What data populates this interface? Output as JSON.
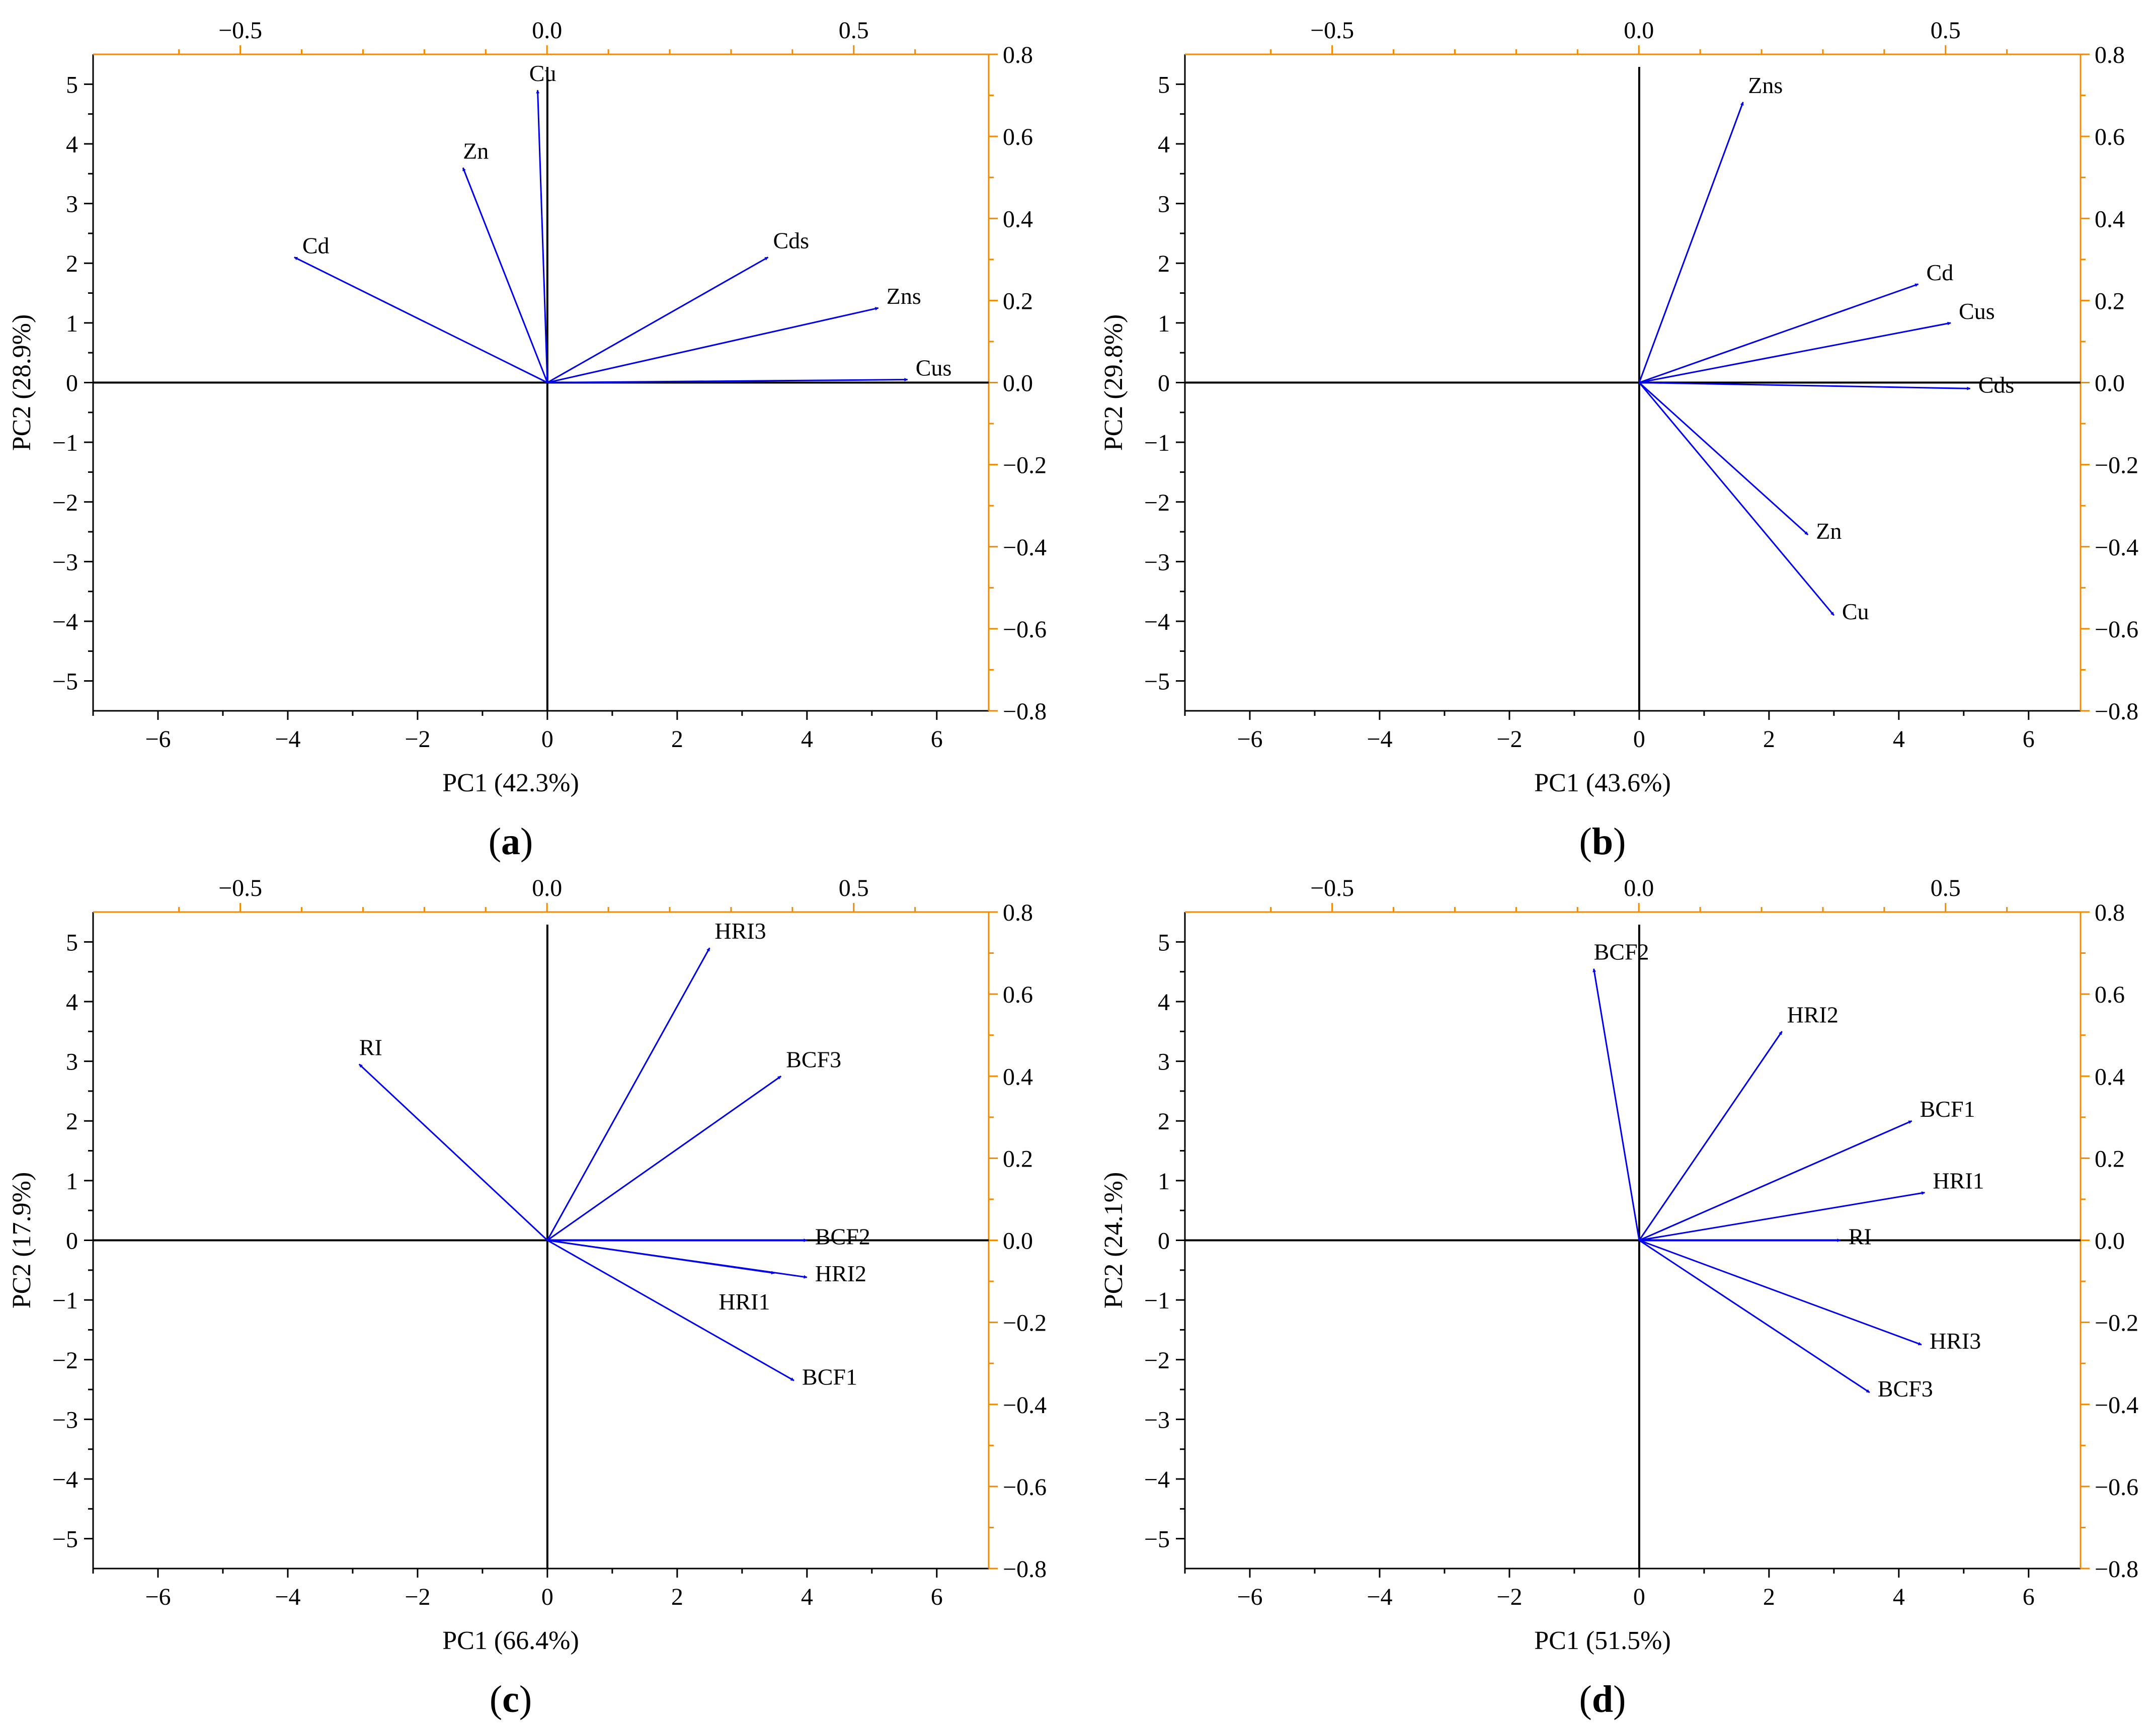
{
  "colors": {
    "arrow": "#0000ee",
    "secondary_axis": "#f28a00",
    "axis": "#000000"
  },
  "chart_data": [
    {
      "type": "biplot",
      "panel_label": "a",
      "xlabel": "PC1 (42.3%)",
      "ylabel": "PC2 (28.9%)",
      "xlim": [
        -7,
        6.8
      ],
      "ylim": [
        -5.5,
        5.5
      ],
      "xticks": [
        -6,
        -4,
        -2,
        0,
        2,
        4,
        6
      ],
      "yticks": [
        -5,
        -4,
        -3,
        -2,
        -1,
        0,
        1,
        2,
        3,
        4,
        5
      ],
      "x2lim": [
        -0.74,
        0.72
      ],
      "y2lim": [
        -0.8,
        0.8
      ],
      "x2ticks": [
        "−0.5",
        "0.0",
        "0.5"
      ],
      "y2ticks": [
        "0.8",
        "0.6",
        "0.4",
        "0.2",
        "0.0",
        "−0.2",
        "−0.4",
        "−0.6",
        "−0.8"
      ],
      "vectors": [
        {
          "name": "Cd",
          "x": -3.9,
          "y": 2.1
        },
        {
          "name": "Zn",
          "x": -1.3,
          "y": 3.6
        },
        {
          "name": "Cu",
          "x": -0.15,
          "y": 4.9
        },
        {
          "name": "Cds",
          "x": 3.4,
          "y": 2.1
        },
        {
          "name": "Zns",
          "x": 5.1,
          "y": 1.25
        },
        {
          "name": "Cus",
          "x": 5.55,
          "y": 0.05
        }
      ]
    },
    {
      "type": "biplot",
      "panel_label": "b",
      "xlabel": "PC1 (43.6%)",
      "ylabel": "PC2 (29.8%)",
      "xlim": [
        -7,
        6.8
      ],
      "ylim": [
        -5.5,
        5.5
      ],
      "xticks": [
        -6,
        -4,
        -2,
        0,
        2,
        4,
        6
      ],
      "yticks": [
        -5,
        -4,
        -3,
        -2,
        -1,
        0,
        1,
        2,
        3,
        4,
        5
      ],
      "x2lim": [
        -0.74,
        0.72
      ],
      "y2lim": [
        -0.8,
        0.8
      ],
      "x2ticks": [
        "−0.5",
        "0.0",
        "0.5"
      ],
      "y2ticks": [
        "0.8",
        "0.6",
        "0.4",
        "0.2",
        "0.0",
        "−0.2",
        "−0.4",
        "−0.6",
        "−0.8"
      ],
      "vectors": [
        {
          "name": "Zns",
          "x": 1.6,
          "y": 4.7
        },
        {
          "name": "Cd",
          "x": 4.3,
          "y": 1.65
        },
        {
          "name": "Cus",
          "x": 4.8,
          "y": 1.0
        },
        {
          "name": "Cds",
          "x": 5.1,
          "y": -0.1
        },
        {
          "name": "Zn",
          "x": 2.6,
          "y": -2.55
        },
        {
          "name": "Cu",
          "x": 3.0,
          "y": -3.9
        }
      ]
    },
    {
      "type": "biplot",
      "panel_label": "c",
      "xlabel": "PC1 (66.4%)",
      "ylabel": "PC2 (17.9%)",
      "xlim": [
        -7,
        6.8
      ],
      "ylim": [
        -5.5,
        5.5
      ],
      "xticks": [
        -6,
        -4,
        -2,
        0,
        2,
        4,
        6
      ],
      "yticks": [
        -5,
        -4,
        -3,
        -2,
        -1,
        0,
        1,
        2,
        3,
        4,
        5
      ],
      "x2lim": [
        -0.74,
        0.72
      ],
      "y2lim": [
        -0.8,
        0.8
      ],
      "x2ticks": [
        "−0.5",
        "0.0",
        "0.5"
      ],
      "y2ticks": [
        "0.8",
        "0.6",
        "0.4",
        "0.2",
        "0.0",
        "−0.2",
        "−0.4",
        "−0.6",
        "−0.8"
      ],
      "vectors": [
        {
          "name": "RI",
          "x": -2.9,
          "y": 2.95
        },
        {
          "name": "HRI3",
          "x": 2.5,
          "y": 4.9
        },
        {
          "name": "BCF3",
          "x": 3.6,
          "y": 2.75
        },
        {
          "name": "BCF2",
          "x": 4.0,
          "y": 0.0
        },
        {
          "name": "HRI1",
          "x": 3.5,
          "y": -0.55,
          "label_position": "below"
        },
        {
          "name": "HRI2",
          "x": 4.0,
          "y": -0.62
        },
        {
          "name": "BCF1",
          "x": 3.8,
          "y": -2.35
        }
      ]
    },
    {
      "type": "biplot",
      "panel_label": "d",
      "xlabel": "PC1 (51.5%)",
      "ylabel": "PC2 (24.1%)",
      "xlim": [
        -7,
        6.8
      ],
      "ylim": [
        -5.5,
        5.5
      ],
      "xticks": [
        -6,
        -4,
        -2,
        0,
        2,
        4,
        6
      ],
      "yticks": [
        -5,
        -4,
        -3,
        -2,
        -1,
        0,
        1,
        2,
        3,
        4,
        5
      ],
      "x2lim": [
        -0.74,
        0.72
      ],
      "y2lim": [
        -0.8,
        0.8
      ],
      "x2ticks": [
        "−0.5",
        "0.0",
        "0.5"
      ],
      "y2ticks": [
        "0.8",
        "0.6",
        "0.4",
        "0.2",
        "0.0",
        "−0.2",
        "−0.4",
        "−0.6",
        "−0.8"
      ],
      "vectors": [
        {
          "name": "BCF2",
          "x": -0.7,
          "y": 4.55
        },
        {
          "name": "HRI2",
          "x": 2.2,
          "y": 3.5
        },
        {
          "name": "BCF1",
          "x": 4.2,
          "y": 2.0
        },
        {
          "name": "HRI1",
          "x": 4.4,
          "y": 0.8
        },
        {
          "name": "RI",
          "x": 3.1,
          "y": 0.0
        },
        {
          "name": "HRI3",
          "x": 4.35,
          "y": -1.75
        },
        {
          "name": "BCF3",
          "x": 3.55,
          "y": -2.55
        }
      ]
    }
  ]
}
